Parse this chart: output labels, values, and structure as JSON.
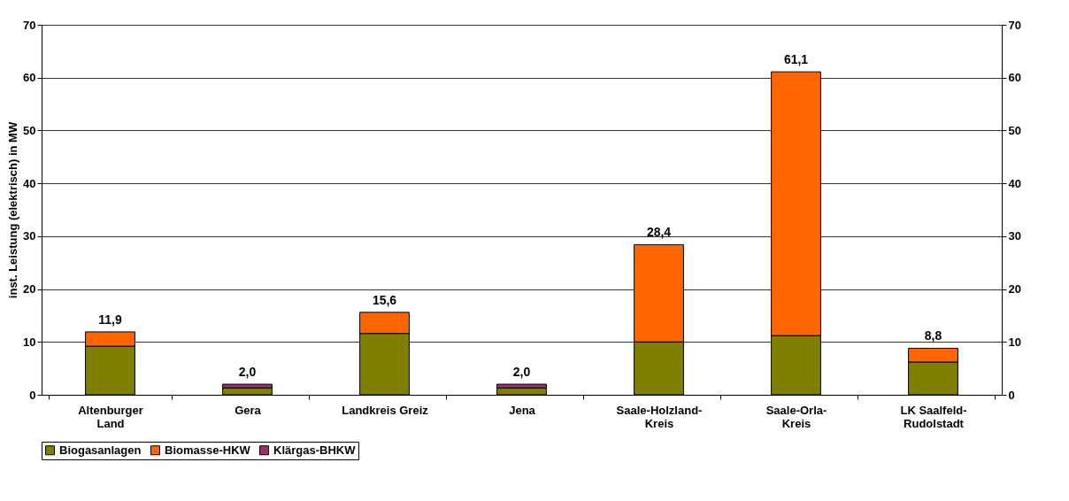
{
  "chart_data": {
    "type": "bar",
    "stacked": true,
    "ylabel": "inst. Leistung (elektrisch) in MW",
    "categories": [
      "Altenburger Land",
      "Gera",
      "Landkreis Greiz",
      "Jena",
      "Saale-Holzland-Kreis",
      "Saale-Orla-Kreis",
      "LK Saalfeld-Rudolstadt"
    ],
    "series": [
      {
        "name": "Biogasanlagen",
        "color": "#808000",
        "values": [
          9.2,
          1.3,
          11.6,
          1.3,
          10.0,
          11.2,
          6.2
        ]
      },
      {
        "name": "Biomasse-HKW",
        "color": "#ff6600",
        "values": [
          2.7,
          null,
          4.0,
          null,
          18.4,
          49.9,
          2.6
        ]
      },
      {
        "name": "Klärgas-BHKW",
        "color": "#993366",
        "values": [
          null,
          0.7,
          null,
          0.7,
          null,
          null,
          null
        ]
      }
    ],
    "totals": [
      "11,9",
      "2,0",
      "15,6",
      "2,0",
      "28,4",
      "61,1",
      "8,8"
    ],
    "ylim": [
      0,
      70
    ],
    "yticks": [
      0,
      10,
      20,
      30,
      40,
      50,
      60,
      70
    ],
    "y2lim": [
      0,
      70
    ],
    "y2ticks": [
      0,
      10,
      20,
      30,
      40,
      50,
      60,
      70
    ],
    "grid": "y",
    "legend": "bottom"
  }
}
